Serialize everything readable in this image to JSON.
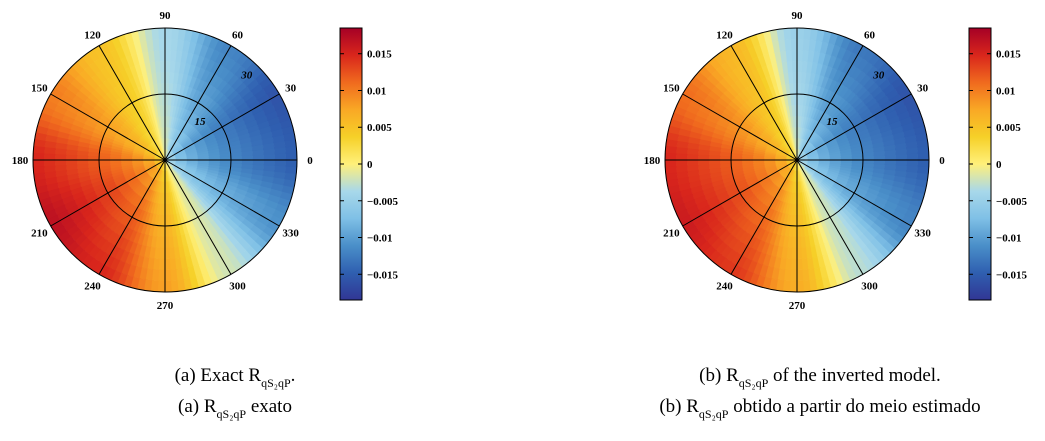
{
  "colormap": [
    "#313695",
    "#2f5fb0",
    "#4a8fc9",
    "#7fc0e6",
    "#a8d8ea",
    "#fff07a",
    "#f6d028",
    "#f9a825",
    "#f06a1e",
    "#d9261c",
    "#a50026"
  ],
  "chart_data": [
    {
      "type": "polar-heatmap",
      "panel": "a",
      "angle_ticks": [
        "0",
        "30",
        "60",
        "90",
        "120",
        "150",
        "180",
        "210",
        "240",
        "270",
        "300",
        "330"
      ],
      "radial_ticks": [
        "15",
        "30"
      ],
      "radial_tick_angle_deg": 45,
      "rlim": [
        0,
        30
      ],
      "colorbar": {
        "range": [
          -0.0185,
          0.0185
        ],
        "tick_values": [
          0.015,
          0.01,
          0.005,
          0,
          -0.005,
          -0.01,
          -0.015
        ],
        "tick_labels": [
          "0.015",
          "0.01",
          "0.005",
          "0",
          "−0.005",
          "−0.01",
          "−0.015"
        ]
      },
      "field_samples": {
        "azimuth_deg": [
          0,
          30,
          60,
          90,
          120,
          150,
          180,
          210,
          240,
          270,
          300,
          330
        ],
        "value_at_rmax": [
          -0.015,
          -0.016,
          -0.012,
          -0.004,
          0.005,
          0.01,
          0.015,
          0.017,
          0.015,
          0.008,
          -0.002,
          -0.011
        ]
      },
      "caption": {
        "line1_prefix": "(a) Exact R",
        "line1_sub": "qS₂qP",
        "line1_suffix": ".",
        "line2_prefix": "(a) R",
        "line2_sub": "qS₂qP",
        "line2_suffix": " exato"
      }
    },
    {
      "type": "polar-heatmap",
      "panel": "b",
      "angle_ticks": [
        "0",
        "30",
        "60",
        "90",
        "120",
        "150",
        "180",
        "210",
        "240",
        "270",
        "300",
        "330"
      ],
      "radial_ticks": [
        "15",
        "30"
      ],
      "radial_tick_angle_deg": 45,
      "rlim": [
        0,
        30
      ],
      "colorbar": {
        "range": [
          -0.0185,
          0.0185
        ],
        "tick_values": [
          0.015,
          0.01,
          0.005,
          0,
          -0.005,
          -0.01,
          -0.015
        ],
        "tick_labels": [
          "0.015",
          "0.01",
          "0.005",
          "0",
          "−0.005",
          "−0.01",
          "−0.015"
        ]
      },
      "field_samples": {
        "azimuth_deg": [
          0,
          30,
          60,
          90,
          120,
          150,
          180,
          210,
          240,
          270,
          300,
          330
        ],
        "value_at_rmax": [
          -0.015,
          -0.016,
          -0.013,
          -0.005,
          0.006,
          0.011,
          0.015,
          0.016,
          0.014,
          0.007,
          -0.003,
          -0.012
        ]
      },
      "caption": {
        "line1_prefix": "(b) R",
        "line1_sub": "qS₂qP",
        "line1_suffix": " of the inverted model.",
        "line2_prefix": "(b) R",
        "line2_sub": "qS₂qP",
        "line2_suffix": " obtido a partir do meio estimado"
      }
    }
  ]
}
